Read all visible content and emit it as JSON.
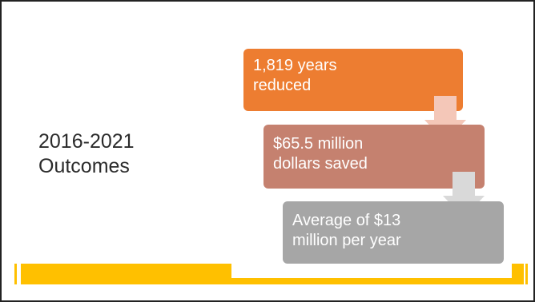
{
  "slide": {
    "title_lines": [
      "2016-2021",
      "Outcomes"
    ],
    "steps": [
      {
        "line1": "1,819 years",
        "line2": "reduced",
        "color": "#ED7D31"
      },
      {
        "line1": "$65.5 million",
        "line2": "dollars saved",
        "color": "#C5816F"
      },
      {
        "line1": "Average of $13",
        "line2": "million per year",
        "color": "#A6A6A6"
      }
    ],
    "arrow_color": "#F4C7B8",
    "arrow_color_2": "#D9D9D9",
    "accent_color": "#FFC000"
  }
}
